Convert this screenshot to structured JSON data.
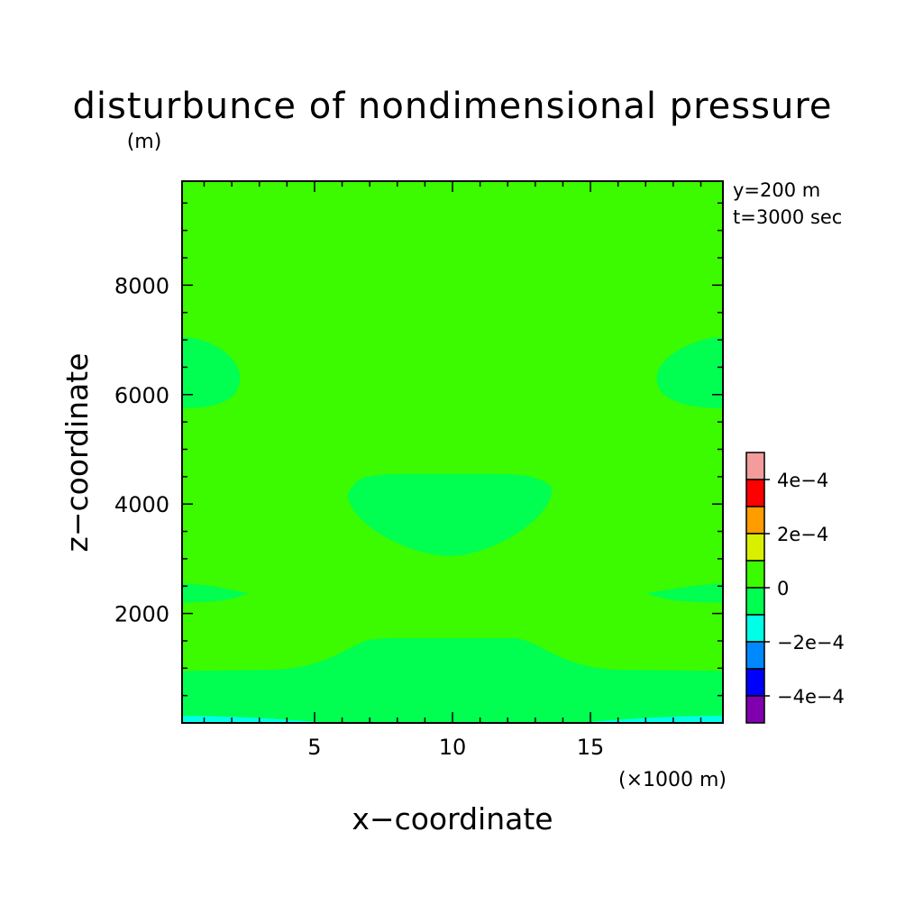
{
  "chart_data": {
    "type": "heatmap",
    "title": "disturbunce of nondimensional pressure",
    "z_unit": "(m)",
    "xlabel": "x−coordinate",
    "ylabel": "z−coordinate",
    "x_unit": "(×1000 m)",
    "annotations": [
      "y=200 m",
      "t=3000 sec"
    ],
    "xlim": [
      0.2,
      19.8
    ],
    "ylim": [
      0,
      9900
    ],
    "x_ticks": [
      5,
      10,
      15
    ],
    "x_tick_labels": [
      "5",
      "10",
      "15"
    ],
    "y_ticks": [
      2000,
      4000,
      6000,
      8000
    ],
    "y_tick_labels": [
      "2000",
      "4000",
      "6000",
      "8000"
    ],
    "grid": false,
    "background_level": "0 to 1e-4",
    "regions": [
      {
        "level": "-1e-4 to 0",
        "area": "bottom layer",
        "x": [
          0.2,
          19.8
        ],
        "z_top_edges": 950,
        "z_top_center": 1550
      },
      {
        "level": "-2e-4 to -1e-4",
        "area": "near surface",
        "x": [
          0.2,
          19.8
        ],
        "z_top": 130
      },
      {
        "level": "-1e-4 to 0",
        "area": "central cell",
        "x": [
          6.2,
          13.6
        ],
        "z": [
          3050,
          4550
        ]
      },
      {
        "level": "-1e-4 to 0",
        "area": "left upper lobe",
        "x": [
          0.2,
          2.3
        ],
        "z": [
          5750,
          7050
        ]
      },
      {
        "level": "-1e-4 to 0",
        "area": "right upper lobe",
        "x": [
          17.4,
          19.8
        ],
        "z": [
          5750,
          7050
        ]
      },
      {
        "level": "-1e-4 to 0",
        "area": "left lower sliver",
        "x": [
          0.2,
          2.6
        ],
        "z": [
          2200,
          2550
        ]
      },
      {
        "level": "-1e-4 to 0",
        "area": "right lower sliver",
        "x": [
          17.0,
          19.8
        ],
        "z": [
          2200,
          2550
        ]
      }
    ],
    "colorbar": {
      "levels": [
        {
          "range": "4e-4 to 5e-4",
          "color": "#f49c9c"
        },
        {
          "range": "3e-4 to 4e-4",
          "color": "#ff0000"
        },
        {
          "range": "2e-4 to 3e-4",
          "color": "#ff9c00"
        },
        {
          "range": "1e-4 to 2e-4",
          "color": "#d8f000"
        },
        {
          "range": "0 to 1e-4",
          "color": "#3cfa00"
        },
        {
          "range": "-1e-4 to 0",
          "color": "#00ff50"
        },
        {
          "range": "-2e-4 to -1e-4",
          "color": "#00ffe6"
        },
        {
          "range": "-3e-4 to -2e-4",
          "color": "#0088ff"
        },
        {
          "range": "-4e-4 to -3e-4",
          "color": "#0000ff"
        },
        {
          "range": "-5e-4 to -4e-4",
          "color": "#8000b0"
        }
      ],
      "tick_labels": [
        "4e−4",
        "2e−4",
        "0",
        "−2e−4",
        "−4e−4"
      ]
    }
  }
}
